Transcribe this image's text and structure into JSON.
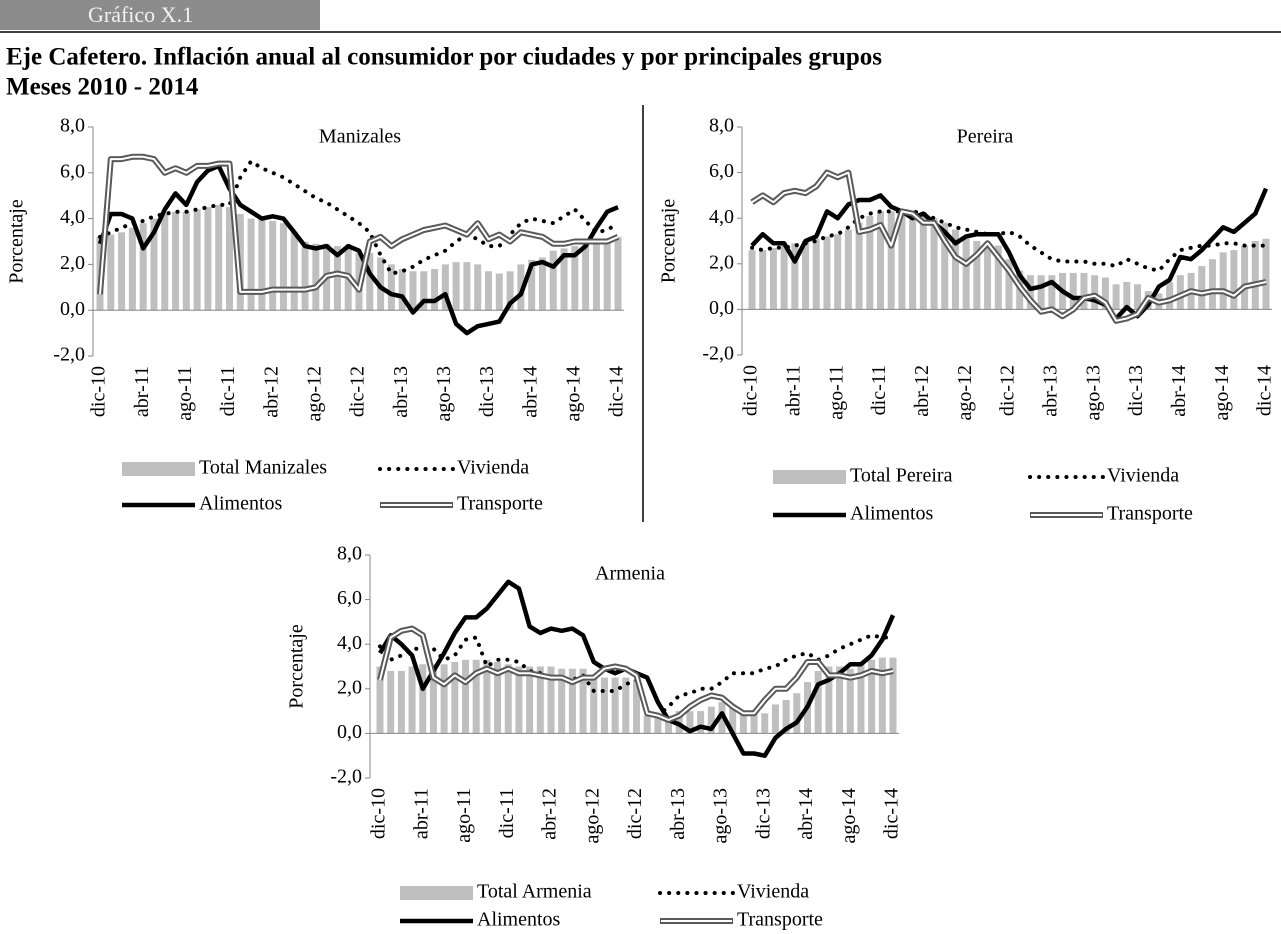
{
  "header": {
    "label": "Gráfico X.1",
    "title": "Eje Cafetero. Inflación anual al consumidor por ciudades y por principales grupos",
    "subtitle": "Meses 2010 - 2014"
  },
  "chart_data": [
    {
      "type": "combo",
      "title": "Manizales",
      "y_label": "Porcentaje",
      "categories": [
        "dic-10",
        null,
        null,
        null,
        "abr-11",
        null,
        null,
        null,
        "ago-11",
        null,
        null,
        null,
        "dic-11",
        null,
        null,
        null,
        "abr-12",
        null,
        null,
        null,
        "ago-12",
        null,
        null,
        null,
        "dic-12",
        null,
        null,
        null,
        "abr-13",
        null,
        null,
        null,
        "ago-13",
        null,
        null,
        null,
        "dic-13",
        null,
        null,
        null,
        "abr-14",
        null,
        null,
        null,
        "ago-14",
        null,
        null,
        null,
        "dic-14"
      ],
      "ylim": [
        -2,
        8
      ],
      "yticks": [
        {
          "value": 8,
          "label": "8,0"
        },
        {
          "value": 6,
          "label": "6,0"
        },
        {
          "value": 4,
          "label": "4,0"
        },
        {
          "value": 2,
          "label": "2,0"
        },
        {
          "value": 0,
          "label": "0,0"
        },
        {
          "value": -2,
          "label": "-2,0"
        }
      ],
      "series": [
        {
          "name": "Total Manizales",
          "kind": "bar",
          "color": "#bfbfbf",
          "values": [
            3.2,
            3.3,
            3.4,
            3.6,
            3.8,
            4.0,
            4.2,
            4.3,
            4.3,
            4.4,
            4.5,
            4.6,
            4.5,
            4.2,
            4.0,
            4.0,
            3.9,
            3.8,
            3.4,
            3.0,
            2.9,
            2.9,
            2.8,
            2.8,
            2.5,
            2.5,
            2.3,
            2.0,
            1.8,
            1.7,
            1.7,
            1.8,
            2.0,
            2.1,
            2.1,
            2.0,
            1.7,
            1.6,
            1.7,
            2.0,
            2.2,
            2.3,
            2.6,
            2.7,
            2.8,
            2.9,
            3.0,
            3.1,
            3.2
          ]
        },
        {
          "name": "Vivienda",
          "kind": "line",
          "style": "dotted",
          "color": "#000000",
          "values": [
            3.2,
            3.4,
            3.6,
            3.8,
            3.9,
            4.1,
            4.2,
            4.3,
            4.3,
            4.4,
            4.5,
            4.6,
            4.6,
            5.8,
            6.5,
            6.2,
            6.0,
            5.8,
            5.5,
            5.2,
            4.9,
            4.7,
            4.4,
            4.1,
            3.8,
            3.4,
            2.4,
            1.6,
            1.7,
            1.9,
            2.2,
            2.4,
            2.6,
            3.0,
            3.3,
            3.1,
            2.8,
            2.8,
            3.3,
            3.8,
            4.0,
            3.9,
            3.8,
            4.1,
            4.4,
            3.9,
            3.4,
            3.5,
            3.8
          ]
        },
        {
          "name": "Alimentos",
          "kind": "line",
          "style": "solid",
          "color": "#000000",
          "values": [
            2.9,
            4.2,
            4.2,
            4.0,
            2.7,
            3.4,
            4.4,
            5.1,
            4.6,
            5.6,
            6.1,
            6.3,
            5.3,
            4.6,
            4.3,
            4.0,
            4.1,
            4.0,
            3.4,
            2.8,
            2.7,
            2.8,
            2.4,
            2.8,
            2.6,
            1.6,
            1.0,
            0.7,
            0.6,
            -0.1,
            0.4,
            0.4,
            0.7,
            -0.6,
            -1.0,
            -0.7,
            -0.6,
            -0.5,
            0.3,
            0.7,
            2.0,
            2.1,
            1.9,
            2.4,
            2.4,
            2.8,
            3.6,
            4.3,
            4.5
          ]
        },
        {
          "name": "Transporte",
          "kind": "line",
          "style": "double",
          "color": "#595959",
          "values": [
            0.7,
            6.6,
            6.6,
            6.7,
            6.7,
            6.6,
            6.0,
            6.2,
            6.0,
            6.3,
            6.3,
            6.4,
            6.4,
            0.8,
            0.8,
            0.8,
            0.9,
            0.9,
            0.9,
            0.9,
            1.0,
            1.5,
            1.6,
            1.5,
            0.9,
            3.0,
            3.2,
            2.8,
            3.1,
            3.3,
            3.5,
            3.6,
            3.7,
            3.5,
            3.3,
            3.8,
            3.1,
            3.3,
            3.0,
            3.4,
            3.3,
            3.2,
            2.9,
            2.9,
            3.0,
            3.0,
            3.0,
            3.0,
            3.2
          ]
        }
      ]
    },
    {
      "type": "combo",
      "title": "Pereira",
      "y_label": "Porcentaje",
      "categories": [
        "dic-10",
        null,
        null,
        null,
        "abr-11",
        null,
        null,
        null,
        "ago-11",
        null,
        null,
        null,
        "dic-11",
        null,
        null,
        null,
        "abr-12",
        null,
        null,
        null,
        "ago-12",
        null,
        null,
        null,
        "dic-12",
        null,
        null,
        null,
        "abr-13",
        null,
        null,
        null,
        "ago-13",
        null,
        null,
        null,
        "dic-13",
        null,
        null,
        null,
        "abr-14",
        null,
        null,
        null,
        "ago-14",
        null,
        null,
        null,
        "dic-14"
      ],
      "ylim": [
        -2,
        8
      ],
      "yticks": [
        {
          "value": 8,
          "label": "8,0"
        },
        {
          "value": 6,
          "label": "6,0"
        },
        {
          "value": 4,
          "label": "4,0"
        },
        {
          "value": 2,
          "label": "2,0"
        },
        {
          "value": 0,
          "label": "0,0"
        },
        {
          "value": -2,
          "label": "-2,0"
        }
      ],
      "series": [
        {
          "name": "Total Pereira",
          "kind": "bar",
          "color": "#bfbfbf",
          "values": [
            2.6,
            2.6,
            2.7,
            2.8,
            2.9,
            3.0,
            3.1,
            3.2,
            3.3,
            3.5,
            3.8,
            4.1,
            4.3,
            4.3,
            4.4,
            4.3,
            4.1,
            4.0,
            3.8,
            3.5,
            3.1,
            3.0,
            2.9,
            2.8,
            2.2,
            1.7,
            1.5,
            1.5,
            1.5,
            1.6,
            1.6,
            1.6,
            1.5,
            1.4,
            1.1,
            1.2,
            1.1,
            0.8,
            0.7,
            1.2,
            1.5,
            1.6,
            1.9,
            2.2,
            2.5,
            2.6,
            2.8,
            3.0,
            3.1
          ]
        },
        {
          "name": "Vivienda",
          "kind": "line",
          "style": "dotted",
          "color": "#000000",
          "values": [
            2.7,
            2.6,
            2.7,
            2.7,
            2.8,
            2.9,
            3.0,
            3.2,
            3.3,
            3.6,
            4.0,
            4.2,
            4.3,
            4.3,
            4.3,
            4.3,
            4.2,
            4.0,
            3.8,
            3.6,
            3.5,
            3.4,
            3.3,
            3.3,
            3.4,
            3.2,
            2.8,
            2.5,
            2.2,
            2.1,
            2.1,
            2.1,
            2.0,
            2.0,
            1.9,
            2.2,
            2.0,
            1.8,
            1.7,
            2.2,
            2.6,
            2.7,
            2.8,
            2.8,
            2.9,
            2.9,
            2.8,
            2.8,
            2.8
          ]
        },
        {
          "name": "Alimentos",
          "kind": "line",
          "style": "solid",
          "color": "#000000",
          "values": [
            2.8,
            3.3,
            2.9,
            2.9,
            2.1,
            3.0,
            3.2,
            4.3,
            4.0,
            4.6,
            4.8,
            4.8,
            5.0,
            4.5,
            4.3,
            4.0,
            4.2,
            3.8,
            3.4,
            2.9,
            3.2,
            3.3,
            3.3,
            3.3,
            2.5,
            1.5,
            0.9,
            1.0,
            1.2,
            0.8,
            0.5,
            0.5,
            0.4,
            0.2,
            -0.4,
            0.1,
            -0.3,
            0.2,
            1.0,
            1.3,
            2.3,
            2.2,
            2.6,
            3.1,
            3.6,
            3.4,
            3.8,
            4.2,
            5.3
          ]
        },
        {
          "name": "Transporte",
          "kind": "line",
          "style": "double",
          "color": "#595959",
          "values": [
            4.7,
            5.0,
            4.7,
            5.1,
            5.2,
            5.1,
            5.4,
            6.0,
            5.8,
            6.0,
            3.4,
            3.5,
            3.7,
            2.8,
            4.3,
            4.2,
            3.8,
            3.8,
            3.0,
            2.3,
            2.0,
            2.4,
            2.9,
            2.3,
            1.7,
            1.0,
            0.4,
            -0.1,
            0.0,
            -0.3,
            0.0,
            0.5,
            0.6,
            0.3,
            -0.5,
            -0.4,
            -0.2,
            0.5,
            0.3,
            0.4,
            0.6,
            0.8,
            0.7,
            0.8,
            0.8,
            0.6,
            1.0,
            1.1,
            1.2
          ]
        }
      ]
    },
    {
      "type": "combo",
      "title": "Armenia",
      "y_label": "Porcentaje",
      "categories": [
        "dic-10",
        null,
        null,
        null,
        "abr-11",
        null,
        null,
        null,
        "ago-11",
        null,
        null,
        null,
        "dic-11",
        null,
        null,
        null,
        "abr-12",
        null,
        null,
        null,
        "ago-12",
        null,
        null,
        null,
        "dic-12",
        null,
        null,
        null,
        "abr-13",
        null,
        null,
        null,
        "ago-13",
        null,
        null,
        null,
        "dic-13",
        null,
        null,
        null,
        "abr-14",
        null,
        null,
        null,
        "ago-14",
        null,
        null,
        null,
        "dic-14"
      ],
      "ylim": [
        -2,
        8
      ],
      "yticks": [
        {
          "value": 8,
          "label": "8,0"
        },
        {
          "value": 6,
          "label": "6,0"
        },
        {
          "value": 4,
          "label": "4,0"
        },
        {
          "value": 2,
          "label": "2,0"
        },
        {
          "value": 0,
          "label": "0,0"
        },
        {
          "value": -2,
          "label": "-2,0"
        }
      ],
      "series": [
        {
          "name": "Total Armenia",
          "kind": "bar",
          "color": "#bfbfbf",
          "values": [
            3.0,
            2.8,
            2.8,
            3.0,
            3.1,
            3.1,
            3.1,
            3.2,
            3.3,
            3.3,
            3.3,
            3.2,
            3.1,
            3.0,
            3.0,
            3.0,
            3.0,
            2.9,
            2.9,
            2.9,
            2.5,
            2.5,
            2.5,
            2.5,
            2.4,
            0.8,
            0.9,
            0.8,
            1.0,
            1.0,
            1.0,
            1.2,
            1.4,
            1.3,
            0.9,
            0.9,
            0.9,
            1.3,
            1.5,
            1.8,
            2.3,
            2.8,
            3.0,
            3.0,
            2.9,
            3.1,
            3.3,
            3.4,
            3.4
          ]
        },
        {
          "name": "Vivienda",
          "kind": "line",
          "style": "dotted",
          "color": "#000000",
          "values": [
            3.9,
            3.3,
            3.5,
            3.8,
            3.8,
            3.8,
            3.3,
            3.5,
            4.2,
            4.3,
            3.0,
            3.3,
            3.3,
            3.2,
            2.8,
            2.7,
            2.5,
            2.5,
            2.4,
            2.6,
            1.9,
            1.9,
            1.9,
            2.2,
            2.4,
            0.9,
            0.8,
            1.2,
            1.7,
            1.8,
            2.0,
            2.0,
            2.3,
            2.7,
            2.7,
            2.7,
            2.9,
            3.0,
            3.3,
            3.5,
            3.6,
            3.3,
            3.5,
            3.8,
            4.0,
            4.2,
            4.4,
            4.3,
            4.3
          ]
        },
        {
          "name": "Alimentos",
          "kind": "line",
          "style": "solid",
          "color": "#000000",
          "values": [
            3.6,
            4.4,
            4.0,
            3.5,
            2.0,
            2.8,
            3.6,
            4.5,
            5.2,
            5.2,
            5.6,
            6.2,
            6.8,
            6.5,
            4.8,
            4.5,
            4.7,
            4.6,
            4.7,
            4.4,
            3.2,
            2.9,
            2.7,
            2.9,
            2.7,
            2.5,
            1.4,
            0.6,
            0.4,
            0.1,
            0.3,
            0.2,
            0.9,
            0.0,
            -0.9,
            -0.9,
            -1.0,
            -0.2,
            0.2,
            0.5,
            1.2,
            2.2,
            2.4,
            2.7,
            3.1,
            3.1,
            3.5,
            4.2,
            5.3
          ]
        },
        {
          "name": "Transporte",
          "kind": "line",
          "style": "double",
          "color": "#595959",
          "values": [
            2.4,
            4.3,
            4.6,
            4.7,
            4.4,
            2.5,
            2.2,
            2.6,
            2.3,
            2.7,
            2.9,
            2.7,
            2.9,
            2.7,
            2.7,
            2.6,
            2.5,
            2.5,
            2.3,
            2.5,
            2.5,
            2.9,
            3.0,
            2.9,
            2.6,
            0.9,
            0.8,
            0.6,
            0.8,
            1.2,
            1.5,
            1.7,
            1.6,
            1.2,
            0.9,
            0.9,
            1.5,
            2.0,
            2.0,
            2.5,
            3.2,
            3.2,
            2.6,
            2.6,
            2.5,
            2.6,
            2.8,
            2.7,
            2.8
          ]
        }
      ]
    }
  ]
}
